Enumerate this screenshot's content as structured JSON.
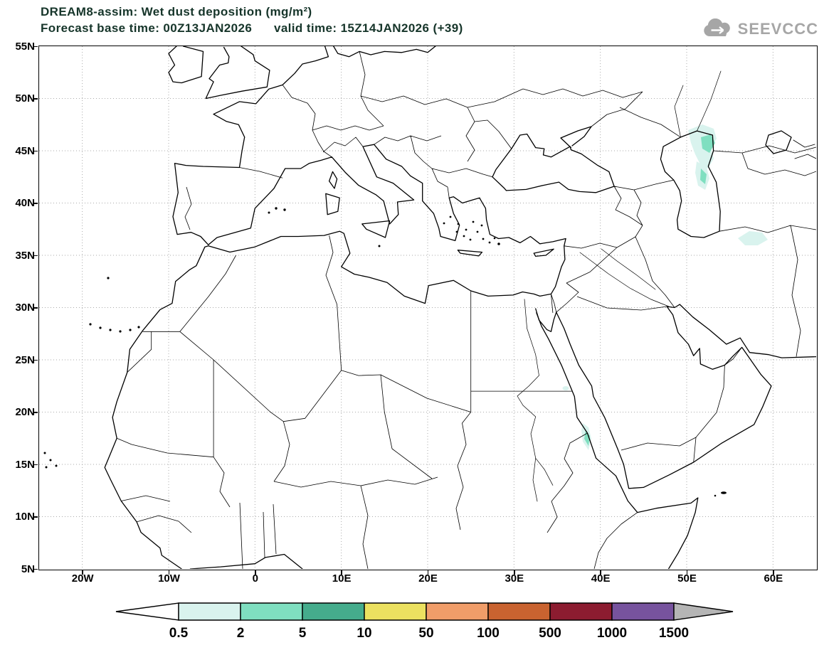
{
  "header": {
    "title_line1": "DREAM8-assim: Wet dust deposition (mg/m²)",
    "title_line2": "Forecast base time: 00Z13JAN2026      valid time: 15Z14JAN2026 (+39)",
    "logo_text": "SEEVCCC"
  },
  "colors": {
    "title_text": "#16352a",
    "logo": "#a6a6a6",
    "grid": "#aaaaaa",
    "line": "#000000"
  },
  "map": {
    "y_axis_labels": [
      "55N",
      "50N",
      "45N",
      "40N",
      "35N",
      "30N",
      "25N",
      "20N",
      "15N",
      "10N",
      "5N"
    ],
    "x_axis_labels": [
      "20W",
      "10W",
      "0",
      "10E",
      "20E",
      "30E",
      "40E",
      "50E",
      "60E"
    ]
  },
  "legend": {
    "tick_labels": [
      "0.5",
      "2",
      "5",
      "10",
      "50",
      "100",
      "500",
      "1000",
      "1500"
    ],
    "segment_colors": [
      "#ffffff",
      "#d9f3ee",
      "#7fdfc0",
      "#45ac8c",
      "#ece160",
      "#f09d69",
      "#c96330",
      "#8c1c30",
      "#77539e",
      "#b5b5b5"
    ]
  },
  "chart_data": {
    "type": "heatmap",
    "title": "DREAM8-assim: Wet dust deposition (mg/m²)",
    "forecast_base_time": "00Z13JAN2026",
    "valid_time": "15Z14JAN2026 (+39)",
    "lat_range": [
      "5N",
      "55N"
    ],
    "lon_range": [
      "20W",
      "60E"
    ],
    "scale_mg_m2": [
      0.5,
      2,
      5,
      10,
      50,
      100,
      500,
      1000,
      1500
    ],
    "deposition_regions": [
      {
        "location": "northwest Caspian Sea coast (~49E-51E, 41N-46N)",
        "value_mg_m2": "0.5-10"
      },
      {
        "location": "northeast Iran (~56E-58E, 35.5N-37N)",
        "value_mg_m2": "0.5-2"
      },
      {
        "location": "Eritrea / Red Sea coast (~38E-39E, 15N-18N)",
        "value_mg_m2": "2-5"
      },
      {
        "location": "Red Sea (~36E, 22N)",
        "value_mg_m2": "0.5-2"
      }
    ]
  }
}
